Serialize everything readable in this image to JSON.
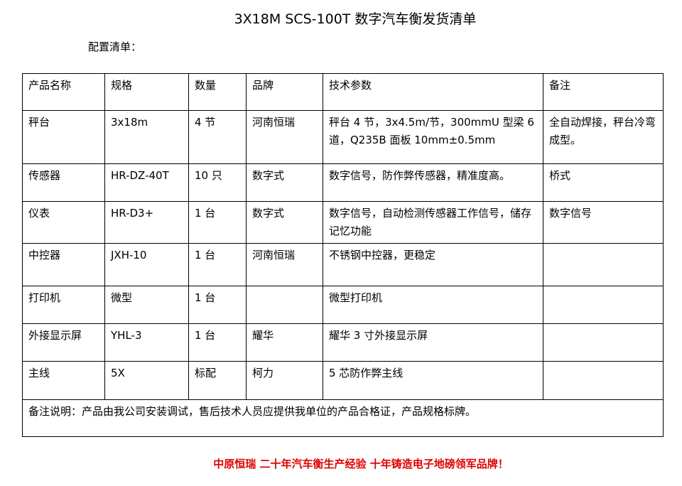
{
  "title": "3X18M SCS-100T 数字汽车衡发货清单",
  "subtitle": "配置清单：",
  "headers": [
    "产品名称",
    "规格",
    "数量",
    "品牌",
    "技术参数",
    "备注"
  ],
  "rows": [
    [
      "秤台",
      "3x18m",
      "4 节",
      "河南恒瑞",
      "秤台 4 节，3x4.5m/节，300mmU 型梁 6 道，Q235B 面板 10mm±0.5mm",
      "全自动焊接，秤台冷弯成型。"
    ],
    [
      "传感器",
      "HR-DZ-40T",
      "10 只",
      "数字式",
      "数字信号，防作弊传感器，精准度高。",
      "桥式"
    ],
    [
      "仪表",
      "HR-D3+",
      "1 台",
      "数字式",
      "数字信号，自动检测传感器工作信号，储存记忆功能",
      "数字信号"
    ],
    [
      "中控器",
      "JXH-10",
      "1 台",
      "河南恒瑞",
      "不锈钢中控器，更稳定",
      ""
    ],
    [
      "打印机",
      "微型",
      "1 台",
      "",
      "微型打印机",
      ""
    ],
    [
      "外接显示屏",
      "YHL-3",
      "1 台",
      "耀华",
      "耀华 3 寸外接显示屏",
      ""
    ],
    [
      "主线",
      "5X",
      "标配",
      "柯力",
      "5 芯防作弊主线",
      ""
    ]
  ],
  "note": "备注说明：产品由我公司安装调试，售后技术人员应提供我单位的产品合格证，产品规格标牌。",
  "slogan": "中原恒瑞 二十年汽车衡生产经验 十年铸造电子地磅领军品牌！",
  "colors": {
    "slogan": "#e00000"
  }
}
